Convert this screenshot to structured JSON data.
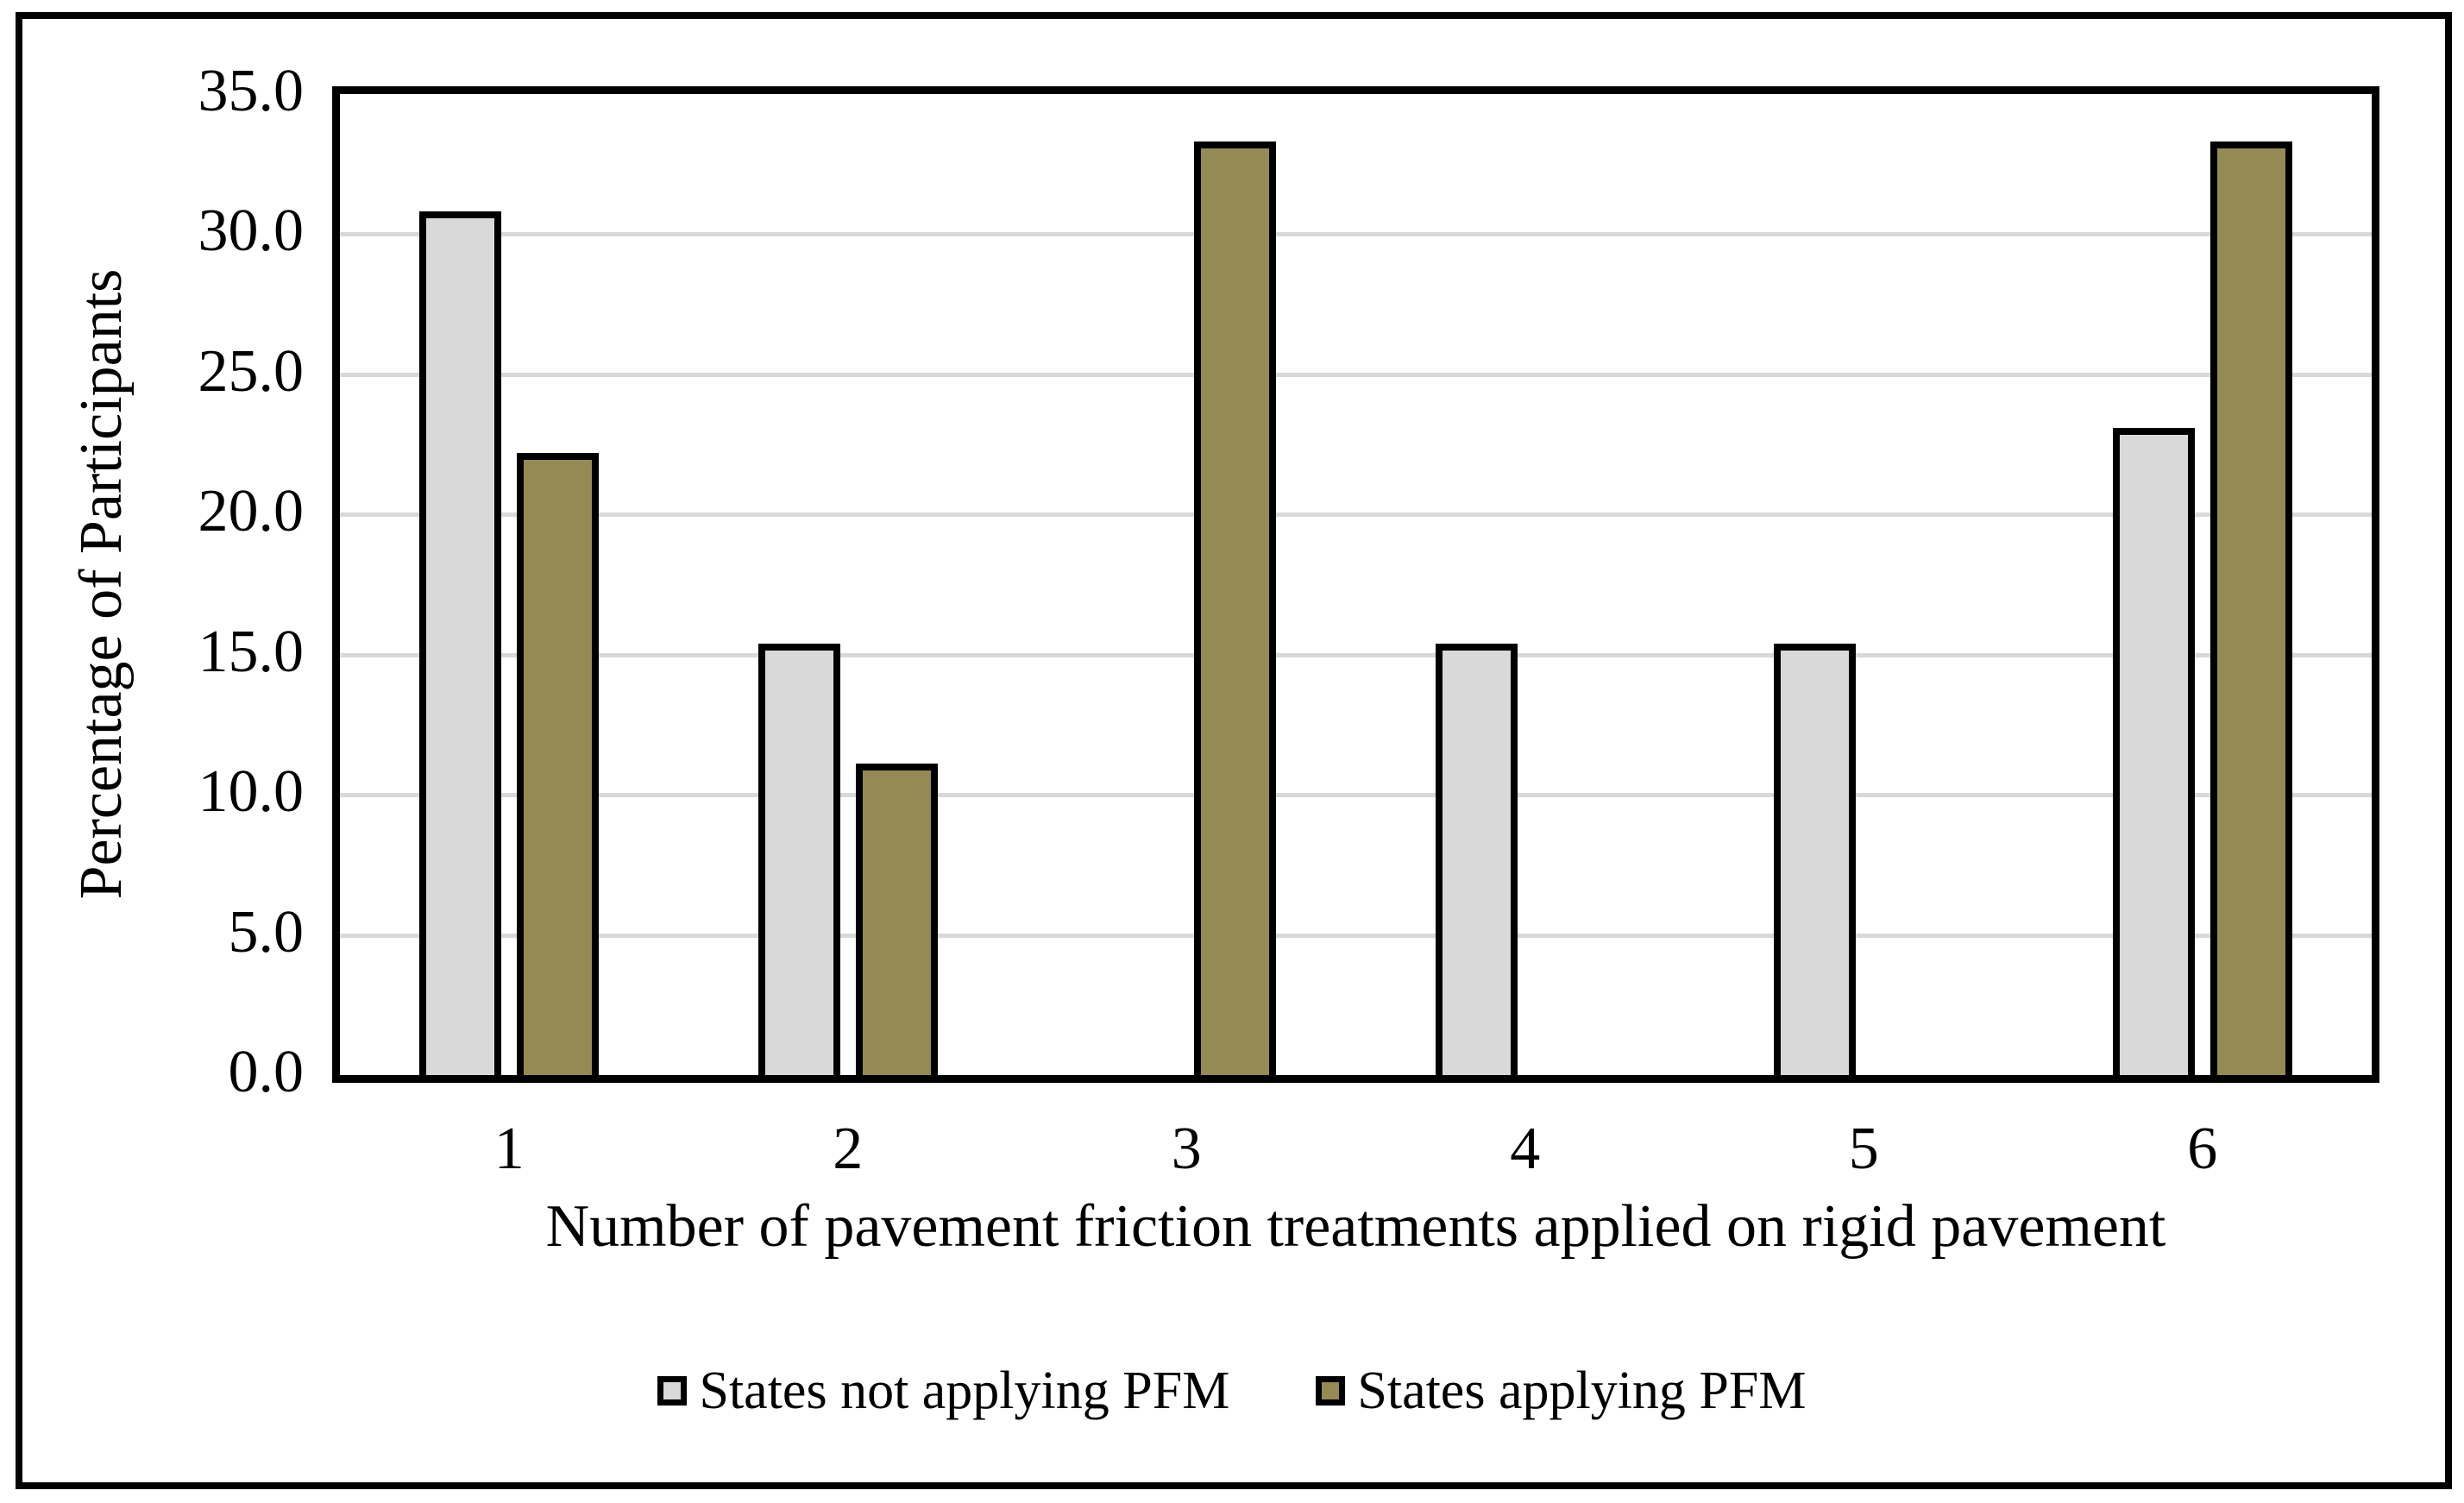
{
  "figure": {
    "background_color": "#ffffff",
    "frame_border_color": "#000000",
    "font_color": "#000000"
  },
  "chart_data": {
    "type": "bar",
    "categories": [
      "1",
      "2",
      "3",
      "4",
      "5",
      "6"
    ],
    "series": [
      {
        "name": "States not applying PFM",
        "color": "#d9d9d9",
        "values": [
          30.8,
          15.4,
          0,
          15.4,
          15.4,
          23.1
        ]
      },
      {
        "name": "States applying PFM",
        "color": "#948a54",
        "values": [
          22.2,
          11.1,
          33.3,
          0,
          0,
          33.3
        ]
      }
    ],
    "title": "",
    "xlabel": "Number of pavement friction treatments applied on rigid pavement",
    "ylabel": "Percentage of Participants",
    "ylim": [
      0,
      35
    ],
    "ytick_step": 5,
    "yticks": [
      "35.0",
      "30.0",
      "25.0",
      "20.0",
      "15.0",
      "10.0",
      "5.0",
      "0.0"
    ],
    "grid": "horizontal",
    "gridline_color": "#d9d9d9",
    "bar_border_color": "#000000",
    "legend_position": "bottom-center"
  }
}
